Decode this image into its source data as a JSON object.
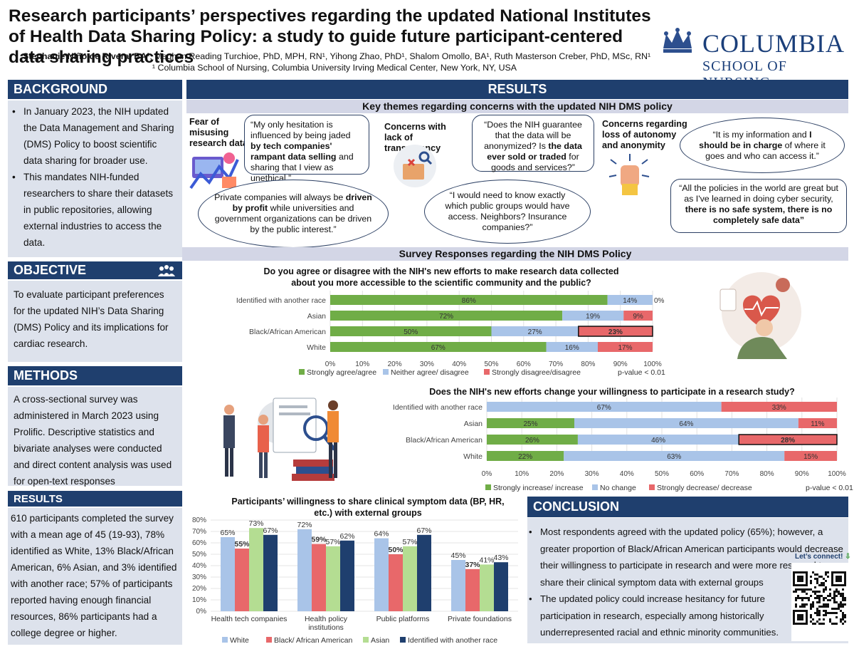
{
  "header": {
    "title": "Research participants’ perspectives regarding the updated National Institutes of Health Data Sharing Policy: a study to guide future participant-centered data sharing practices",
    "authors_lead": "Stephanie Niño de Rivera, BA¹",
    "authors_rest": ", Meghan Reading Turchioe, PhD, MPH, RN¹, Yihong Zhao, PhD¹, Shalom Omollo, BA¹, Ruth Masterson Creber, PhD, MSc, RN¹",
    "affiliation": "¹ Columbia School of Nursing, Columbia University Irving Medical Center, New York, NY, USA",
    "logo_word": "COLUMBIA",
    "logo_sub": "SCHOOL OF NURSING"
  },
  "background": {
    "heading": "BACKGROUND",
    "bullets": [
      "In January 2023, the NIH updated the Data Management and Sharing (DMS) Policy to boost scientific data sharing for broader use.",
      "This mandates NIH-funded researchers to share their datasets in public repositories, allowing external industries to access the data."
    ]
  },
  "objective": {
    "heading": "OBJECTIVE",
    "text": "To evaluate participant preferences for the updated NIH’s Data Sharing (DMS) Policy and its implications for cardiac research."
  },
  "methods": {
    "heading": "METHODS",
    "text": "A cross-sectional survey was administered in March 2023 using Prolific. Descriptive statistics and bivariate analyses were conducted and direct content analysis was used for open-text responses"
  },
  "results_left": {
    "heading": "RESULTS",
    "text": "610 participants completed the survey with a mean age of 45 (19-93), 78% identified as White, 13% Black/African American, 6% Asian, and 3% identified with another race; 57% of participants reported having enough financial resources, 86% participants had a college degree or higher."
  },
  "results": {
    "heading": "RESULTS",
    "themes_heading": "Key themes regarding concerns with the updated  NIH DMS policy",
    "survey_heading": "Survey Responses regarding the NIH DMS Policy",
    "theme1": {
      "label": "Fear of misusing research data",
      "quote1_a": "“My only hesitation is influenced by being jaded ",
      "quote1_b": "by tech companies' rampant data selling",
      "quote1_c": " and sharing that I view as unethical.”",
      "quote2_a": "Private companies will always be ",
      "quote2_b": "driven by profit",
      "quote2_c": " while universities and government organizations can be driven by the public interest.”"
    },
    "theme2": {
      "label": "Concerns with lack of transparency",
      "quote1_a": "“Does the NIH guarantee that the data will be anonymized? Is ",
      "quote1_b": "the data ever sold or traded",
      "quote1_c": " for goods and services?”",
      "quote2": "“I would need to know exactly which public groups would have access. Neighbors? Insurance companies?”"
    },
    "theme3": {
      "label": "Concerns regarding loss of autonomy and anonymity",
      "quote1_a": "“It is my information and ",
      "quote1_b": "I should be in charge",
      "quote1_c": " of where it goes and who can access it.”",
      "quote2_a": "“All the policies in the world are great but as I've learned in doing cyber security, ",
      "quote2_b": "there is no safe system, there is no completely safe data”"
    }
  },
  "conclusion": {
    "heading": "CONCLUSION",
    "bullets": [
      "Most respondents agreed with the updated policy (65%); however, a greater proportion of Black/African American participants would decrease their willingness to participate in research and were more reserved to share their clinical symptom data with external groups",
      "The updated policy could increase hesitancy for future participation in research, especially among historically underrepresented racial and ethnic minority communities."
    ],
    "connect": "Let’s connect!"
  },
  "colors": {
    "navy": "#1f3f6e",
    "green": "#70ad47",
    "blue": "#a9c4e8",
    "red": "#e8686a",
    "green_light": "#b4dd92"
  },
  "chart_data": [
    {
      "type": "bar",
      "orientation": "horizontal-stacked",
      "title": "Do you agree or disagree with the NIH's new efforts to make research data collected about you more accessible to the scientific community and the public?",
      "categories": [
        "Identified with another race",
        "Asian",
        "Black/African American",
        "White"
      ],
      "series": [
        {
          "name": "Strongly agree/agree",
          "values": [
            86,
            72,
            50,
            67
          ]
        },
        {
          "name": "Neither agree/ disagree",
          "values": [
            14,
            19,
            27,
            16
          ]
        },
        {
          "name": "Strongly disagree/disagree",
          "values": [
            0,
            9,
            23,
            17
          ]
        }
      ],
      "xlim": [
        0,
        100
      ],
      "ticks": [
        "0%",
        "10%",
        "20%",
        "30%",
        "40%",
        "50%",
        "60%",
        "70%",
        "80%",
        "90%",
        "100%"
      ],
      "annotation": "p-value < 0.01",
      "legend": "bottom"
    },
    {
      "type": "bar",
      "orientation": "horizontal-stacked",
      "title": "Does the NIH's new efforts change your willingness to participate in a  research study?",
      "categories": [
        "Identified with another race",
        "Asian",
        "Black/African American",
        "White"
      ],
      "series": [
        {
          "name": "Strongly increase/ increase",
          "values": [
            0,
            25,
            26,
            22
          ]
        },
        {
          "name": "No change",
          "values": [
            67,
            64,
            46,
            63
          ]
        },
        {
          "name": "Strongly decrease/ decrease",
          "values": [
            33,
            11,
            28,
            15
          ]
        }
      ],
      "xlim": [
        0,
        100
      ],
      "ticks": [
        "0%",
        "10%",
        "20%",
        "30%",
        "40%",
        "50%",
        "60%",
        "70%",
        "80%",
        "90%",
        "100%"
      ],
      "annotation": "p-value < 0.01",
      "legend": "bottom"
    },
    {
      "type": "bar",
      "title": "Participants’ willingness to share clinical symptom data (BP, HR, etc.) with external groups",
      "categories": [
        "Health tech companies",
        "Health policy institutions",
        "Public platforms",
        "Private foundations"
      ],
      "series": [
        {
          "name": "White",
          "values": [
            65,
            72,
            64,
            45
          ]
        },
        {
          "name": "Black/ African American",
          "values": [
            55,
            59,
            50,
            37
          ]
        },
        {
          "name": "Asian",
          "values": [
            73,
            57,
            57,
            41
          ]
        },
        {
          "name": "Identified with another race",
          "values": [
            67,
            62,
            67,
            43
          ]
        }
      ],
      "ylim": [
        0,
        80
      ],
      "ticks": [
        "0%",
        "10%",
        "20%",
        "30%",
        "40%",
        "50%",
        "60%",
        "70%",
        "80%"
      ],
      "legend": "bottom"
    }
  ]
}
